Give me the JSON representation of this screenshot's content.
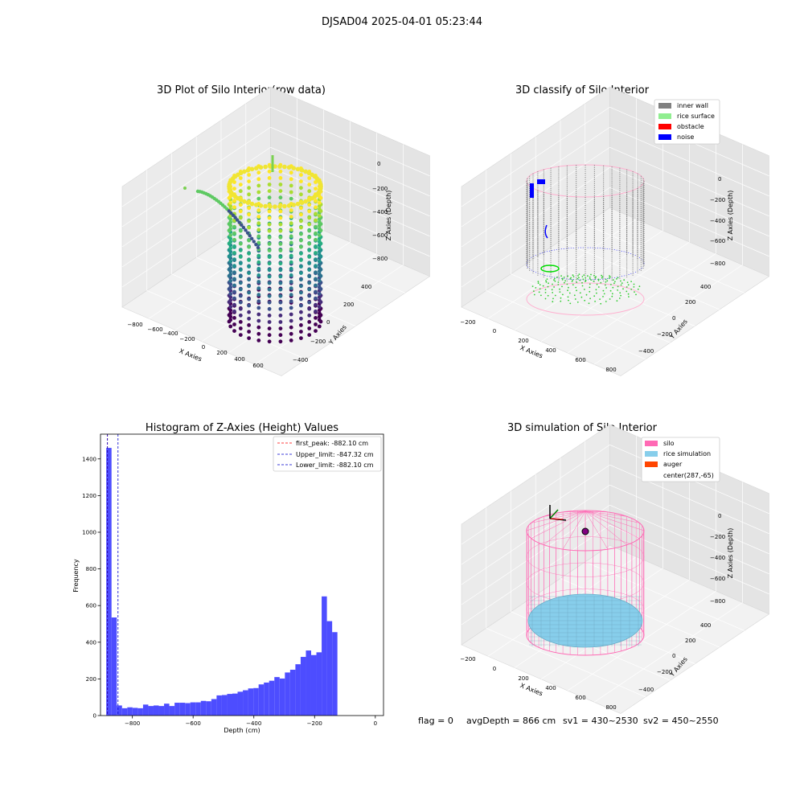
{
  "suptitle": "DJSAD04 2025-04-01 05:23:44",
  "footer": {
    "flag": "flag = 0",
    "avg_depth": "avgDepth = 866 cm",
    "sv1": "sv1 = 430~2530",
    "sv2": "sv2 = 450~2550"
  },
  "colors": {
    "hist_bar": "#4d4dff",
    "first_peak": "#ff0000",
    "limit": "#0000cc",
    "inner_wall": "#808080",
    "rice_surface": "#90ee90",
    "obstacle": "#ff0000",
    "noise": "#0000ff",
    "silo": "#ff69b4",
    "rice_simulation": "#87ceeb",
    "auger": "#ff4500"
  },
  "chart_data": [
    {
      "type": "scatter3d",
      "title": "3D Plot of Silo Interior(row data)",
      "xlabel": "X Axies",
      "ylabel": "Y Axies",
      "zlabel": "Z Axies (Depth)",
      "xticks": [
        "−800",
        "−600",
        "−400",
        "−200",
        "0",
        "200",
        "400",
        "600"
      ],
      "yticks": [
        "−400",
        "−200",
        "0",
        "200",
        "400"
      ],
      "zticks": [
        "0",
        "−200",
        "−400",
        "−600",
        "−800"
      ],
      "colormap": "viridis"
    },
    {
      "type": "scatter3d",
      "title": "3D classify of Silo Interior",
      "xlabel": "X Axies",
      "ylabel": "Y Axies",
      "zlabel": "Z Axies (Depth)",
      "xticks": [
        "−200",
        "0",
        "200",
        "400",
        "600",
        "800"
      ],
      "yticks": [
        "−400",
        "−200",
        "0",
        "200",
        "400"
      ],
      "zticks": [
        "0",
        "−200",
        "−400",
        "−600",
        "−800"
      ],
      "legend": [
        "inner wall",
        "rice surface",
        "obstacle",
        "noise"
      ],
      "legend_loc": "top-right"
    },
    {
      "type": "bar",
      "title": "Histogram of Z-Axies (Height) Values",
      "xlabel": "Depth (cm)",
      "ylabel": "Frequency",
      "xlim": [
        -905,
        27
      ],
      "ylim": [
        0,
        1535
      ],
      "xticks": [
        -800,
        -600,
        -400,
        -200,
        0
      ],
      "xtick_labels": [
        "−800",
        "−600",
        "−400",
        "−200",
        "0"
      ],
      "yticks": [
        0,
        200,
        400,
        600,
        800,
        1000,
        1200,
        1400
      ],
      "bin_start": -886,
      "bin_width": 17.3,
      "values": [
        1460,
        535,
        55,
        40,
        45,
        42,
        40,
        60,
        52,
        55,
        52,
        65,
        52,
        70,
        70,
        68,
        72,
        72,
        80,
        78,
        90,
        110,
        112,
        118,
        120,
        130,
        138,
        148,
        150,
        170,
        180,
        190,
        210,
        202,
        235,
        250,
        280,
        320,
        355,
        330,
        345,
        650,
        515,
        455
      ],
      "vlines": [
        {
          "x": -882.1,
          "label": "first_peak: -882.10 cm",
          "style": "first_peak"
        },
        {
          "x": -847.32,
          "label": "Upper_limit: -847.32 cm",
          "style": "limit"
        },
        {
          "x": -882.1,
          "label": "Lower_limit: -882.10 cm",
          "style": "limit"
        }
      ],
      "legend_loc": "top-right"
    },
    {
      "type": "surface3d",
      "title": "3D simulation of Silo Interior",
      "xlabel": "X Axies",
      "ylabel": "Y Axies",
      "zlabel": "Z Axies (Depth)",
      "xticks": [
        "−200",
        "0",
        "200",
        "400",
        "600",
        "800"
      ],
      "yticks": [
        "−400",
        "−200",
        "0",
        "200",
        "400"
      ],
      "zticks": [
        "0",
        "−200",
        "−400",
        "−600",
        "−800"
      ],
      "legend": [
        "silo",
        "rice simulation",
        "auger",
        "center(287,-65)"
      ],
      "legend_loc": "top-right"
    }
  ]
}
